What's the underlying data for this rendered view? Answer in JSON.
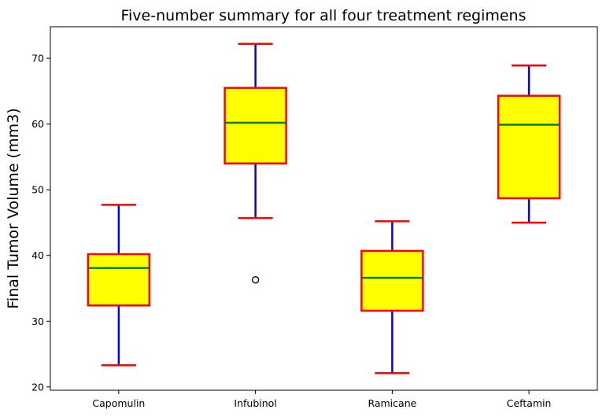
{
  "chart_data": {
    "type": "box",
    "title": "Five-number summary for all four treatment regimens",
    "xlabel": "",
    "ylabel": "Final Tumor Volume (mm3)",
    "ylim": [
      19.5,
      74.8
    ],
    "yticks": [
      20,
      30,
      40,
      50,
      60,
      70
    ],
    "grid": false,
    "categories": [
      "Capomulin",
      "Infubinol",
      "Ramicane",
      "Ceftamin"
    ],
    "boxes": [
      {
        "name": "Capomulin",
        "whislo": 23.3,
        "q1": 32.4,
        "med": 38.1,
        "q3": 40.2,
        "whishi": 47.7,
        "fliers": []
      },
      {
        "name": "Infubinol",
        "whislo": 45.7,
        "q1": 54.0,
        "med": 60.2,
        "q3": 65.5,
        "whishi": 72.2,
        "fliers": [
          36.3
        ]
      },
      {
        "name": "Ramicane",
        "whislo": 22.1,
        "q1": 31.6,
        "med": 36.6,
        "q3": 40.7,
        "whishi": 45.2,
        "fliers": []
      },
      {
        "name": "Ceftamin",
        "whislo": 45.0,
        "q1": 48.7,
        "med": 59.9,
        "q3": 64.3,
        "whishi": 68.9,
        "fliers": []
      }
    ],
    "colors": {
      "box_fill": "#ffff00",
      "box_edge": "#ff0000",
      "whisker": "#0000ff",
      "cap": "#ff0000",
      "median": "#008000",
      "flier_edge": "#000000"
    }
  }
}
